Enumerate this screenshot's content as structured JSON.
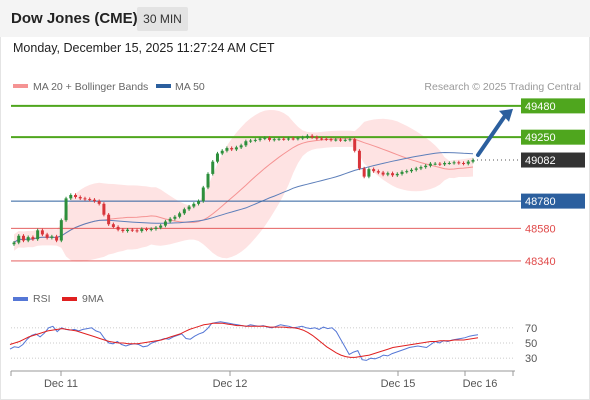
{
  "header": {
    "title": "Dow Jones (CME)",
    "timeframe": "30 MIN"
  },
  "datetime": "Monday, December 15, 2025 11:27:24 AM CET",
  "legend": {
    "ma20": "MA 20 + Bollinger Bands",
    "ma50": "MA 50",
    "rsi": "RSI",
    "ma9": "9MA"
  },
  "credit": "Research © 2025 Trading Central",
  "colors": {
    "up": "#2d8f3c",
    "down": "#d8343a",
    "green_level": "#4fa61e",
    "blue_level": "#2b5f9e",
    "red_level": "#e04a4a",
    "current_price": "#333333",
    "bollinger": "#fdd9d9",
    "ma20": "#f59393",
    "ma50": "#5d7fba",
    "rsi": "#5577d6",
    "ma9": "#e02020",
    "arrow": "#2b5f9e"
  },
  "chart_data": [
    {
      "type": "candlestick",
      "ylim": [
        48200,
        49560
      ],
      "x_labels": [
        "Dec 11",
        "Dec 12",
        "Dec 15",
        "Dec 16"
      ],
      "levels": [
        {
          "value": 49480,
          "label": "49480",
          "style": "resistance"
        },
        {
          "value": 49250,
          "label": "49250",
          "style": "resistance"
        },
        {
          "value": 49082,
          "label": "49082",
          "style": "current"
        },
        {
          "value": 48780,
          "label": "48780",
          "style": "pivot"
        },
        {
          "value": 48580,
          "label": "48580",
          "style": "support"
        },
        {
          "value": 48340,
          "label": "48340",
          "style": "support"
        }
      ],
      "closes": [
        48475,
        48525,
        48490,
        48515,
        48500,
        48565,
        48535,
        48510,
        48520,
        48490,
        48640,
        48800,
        48825,
        48810,
        48800,
        48795,
        48790,
        48780,
        48760,
        48680,
        48610,
        48590,
        48570,
        48560,
        48570,
        48565,
        48560,
        48575,
        48570,
        48575,
        48585,
        48600,
        48630,
        48650,
        48665,
        48690,
        48720,
        48740,
        48760,
        48780,
        48880,
        48980,
        49070,
        49130,
        49150,
        49170,
        49160,
        49175,
        49190,
        49220,
        49225,
        49230,
        49240,
        49245,
        49230,
        49235,
        49238,
        49236,
        49240,
        49238,
        49242,
        49248,
        49260,
        49250,
        49240,
        49238,
        49235,
        49230,
        49232,
        49228,
        49230,
        49235,
        49150,
        49020,
        48960,
        49015,
        49000,
        48990,
        48975,
        48985,
        48970,
        48980,
        48995,
        49000,
        49010,
        49020,
        49030,
        49040,
        49055,
        49055,
        49050,
        49060,
        49060,
        49065,
        49060,
        49055,
        49070,
        49082
      ],
      "rsi": {
        "ticks": [
          70,
          50,
          30
        ],
        "ylim": [
          17,
          83
        ]
      },
      "rsi_line": [
        42,
        45,
        44,
        48,
        55,
        60,
        62,
        58,
        63,
        70,
        72,
        65,
        70,
        68,
        67,
        68,
        66,
        68,
        69,
        70,
        66,
        64,
        56,
        50,
        49,
        52,
        48,
        46,
        48,
        49,
        48,
        45,
        46,
        50,
        52,
        54,
        56,
        55,
        58,
        60,
        62,
        56,
        55,
        59,
        62,
        64,
        69,
        76,
        77,
        78,
        77,
        76,
        75,
        74,
        73,
        72,
        74,
        73,
        72,
        73,
        71,
        70,
        72,
        74,
        73,
        72,
        70,
        71,
        72,
        70,
        69,
        70,
        68,
        71,
        69,
        70,
        65,
        55,
        45,
        35,
        38,
        40,
        28,
        27,
        30,
        29,
        31,
        34,
        33,
        36,
        38,
        40,
        42,
        44,
        45,
        46,
        45,
        44,
        48,
        52,
        50,
        53,
        52,
        54,
        55,
        56,
        57,
        59,
        60,
        61
      ],
      "ma9_line": [
        48,
        50,
        52,
        55,
        58,
        60,
        62,
        64,
        66,
        67,
        68,
        69,
        68,
        67,
        66,
        64,
        62,
        60,
        58,
        56,
        54,
        52,
        51,
        50,
        50,
        49,
        49,
        49,
        50,
        51,
        52,
        53,
        54,
        56,
        58,
        60,
        62,
        65,
        68,
        70,
        72,
        74,
        75,
        76,
        76,
        76,
        75,
        74,
        73,
        73,
        72,
        72,
        72,
        72,
        72,
        71,
        71,
        71,
        71,
        70,
        70,
        69,
        67,
        64,
        60,
        55,
        50,
        45,
        41,
        37,
        34,
        32,
        31,
        31,
        32,
        33,
        34,
        36,
        38,
        40,
        42,
        44,
        45,
        46,
        47,
        48,
        49,
        50,
        51,
        52,
        52,
        53,
        53,
        53,
        54,
        54,
        54,
        55,
        56,
        57
      ]
    }
  ]
}
